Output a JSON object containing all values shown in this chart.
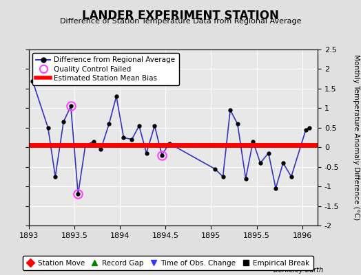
{
  "title": "LANDER EXPERIMENT STATION",
  "subtitle": "Difference of Station Temperature Data from Regional Average",
  "ylabel": "Monthly Temperature Anomaly Difference (°C)",
  "credit": "Berkeley Earth",
  "xlim": [
    1893,
    1896.17
  ],
  "ylim": [
    -2,
    2.5
  ],
  "yticks": [
    -2,
    -1.5,
    -1,
    -0.5,
    0,
    0.5,
    1,
    1.5,
    2,
    2.5
  ],
  "xticks": [
    1893,
    1893.5,
    1894,
    1894.5,
    1895,
    1895.5,
    1896
  ],
  "mean_bias": 0.05,
  "line_color": "#3333bb",
  "line_width": 1.2,
  "marker_color": "black",
  "marker_size": 3.5,
  "bias_color": "red",
  "bias_linewidth": 5,
  "qc_color": "#ff44ff",
  "bg_color": "#e0e0e0",
  "plot_bg": "#e8e8e8",
  "grid_color": "white",
  "data_x": [
    1893.04,
    1893.21,
    1893.29,
    1893.38,
    1893.46,
    1893.54,
    1893.62,
    1893.71,
    1893.79,
    1893.88,
    1893.96,
    1894.04,
    1894.13,
    1894.21,
    1894.29,
    1894.38,
    1894.46,
    1894.54,
    1895.04,
    1895.13,
    1895.21,
    1895.29,
    1895.38,
    1895.46,
    1895.54,
    1895.63,
    1895.71,
    1895.79,
    1895.88,
    1896.04,
    1896.08
  ],
  "data_y": [
    1.7,
    0.5,
    -0.75,
    0.65,
    1.05,
    -1.2,
    0.05,
    0.15,
    -0.05,
    0.6,
    1.3,
    0.25,
    0.2,
    0.55,
    -0.15,
    0.55,
    -0.2,
    0.1,
    -0.55,
    -0.75,
    0.95,
    0.6,
    -0.8,
    0.15,
    -0.4,
    -0.15,
    -1.05,
    -0.4,
    -0.75,
    0.45,
    0.5
  ],
  "qc_indices": [
    4,
    5,
    16
  ],
  "legend_entries": [
    "Difference from Regional Average",
    "Quality Control Failed",
    "Estimated Station Mean Bias"
  ],
  "bottom_legend": [
    {
      "label": "Station Move",
      "color": "red",
      "marker": "D"
    },
    {
      "label": "Record Gap",
      "color": "green",
      "marker": "^"
    },
    {
      "label": "Time of Obs. Change",
      "color": "#3333ff",
      "marker": "v"
    },
    {
      "label": "Empirical Break",
      "color": "black",
      "marker": "s"
    }
  ]
}
